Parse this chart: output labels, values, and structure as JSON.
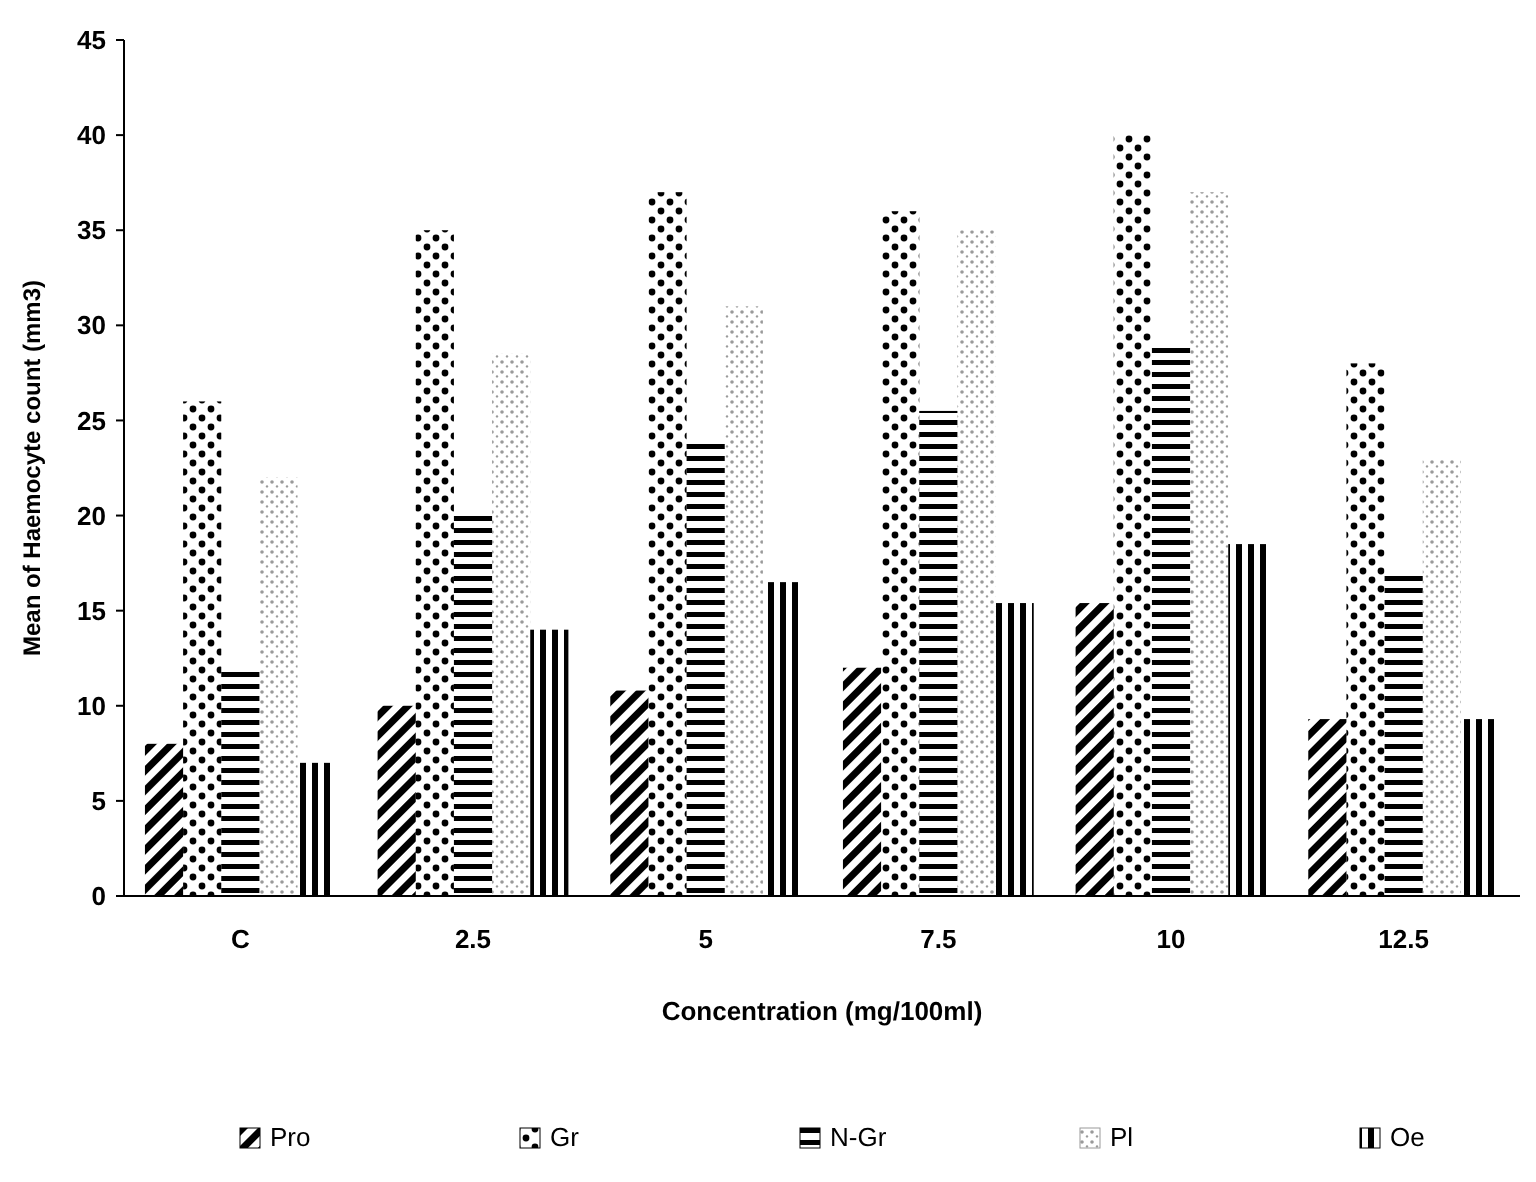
{
  "chart_data": {
    "type": "bar",
    "xlabel": "Concentration (mg/100ml)",
    "ylabel": "Mean of Haemocyte count (mm3)",
    "categories": [
      "C",
      "2.5",
      "5",
      "7.5",
      "10",
      "12.5"
    ],
    "series": [
      {
        "name": "Pro",
        "color": "#000000",
        "values": [
          8,
          10,
          10.8,
          12,
          15.4,
          9.3
        ]
      },
      {
        "name": "Gr",
        "color": "#000000",
        "values": [
          26,
          35,
          37,
          36,
          40,
          28
        ]
      },
      {
        "name": "N-Gr",
        "color": "#000000",
        "values": [
          12,
          20,
          24,
          25.5,
          29,
          17
        ]
      },
      {
        "name": "Pl",
        "color": "#9a9a9a",
        "values": [
          22,
          28.5,
          31,
          35,
          37,
          23
        ]
      },
      {
        "name": "Oe",
        "color": "#000000",
        "values": [
          7,
          14,
          16.5,
          15.4,
          18.5,
          9.3
        ]
      }
    ],
    "ylim": [
      0,
      45
    ],
    "yticks": [
      0,
      5,
      10,
      15,
      20,
      25,
      30,
      35,
      40,
      45
    ],
    "grid": false,
    "legend": "bottom"
  }
}
